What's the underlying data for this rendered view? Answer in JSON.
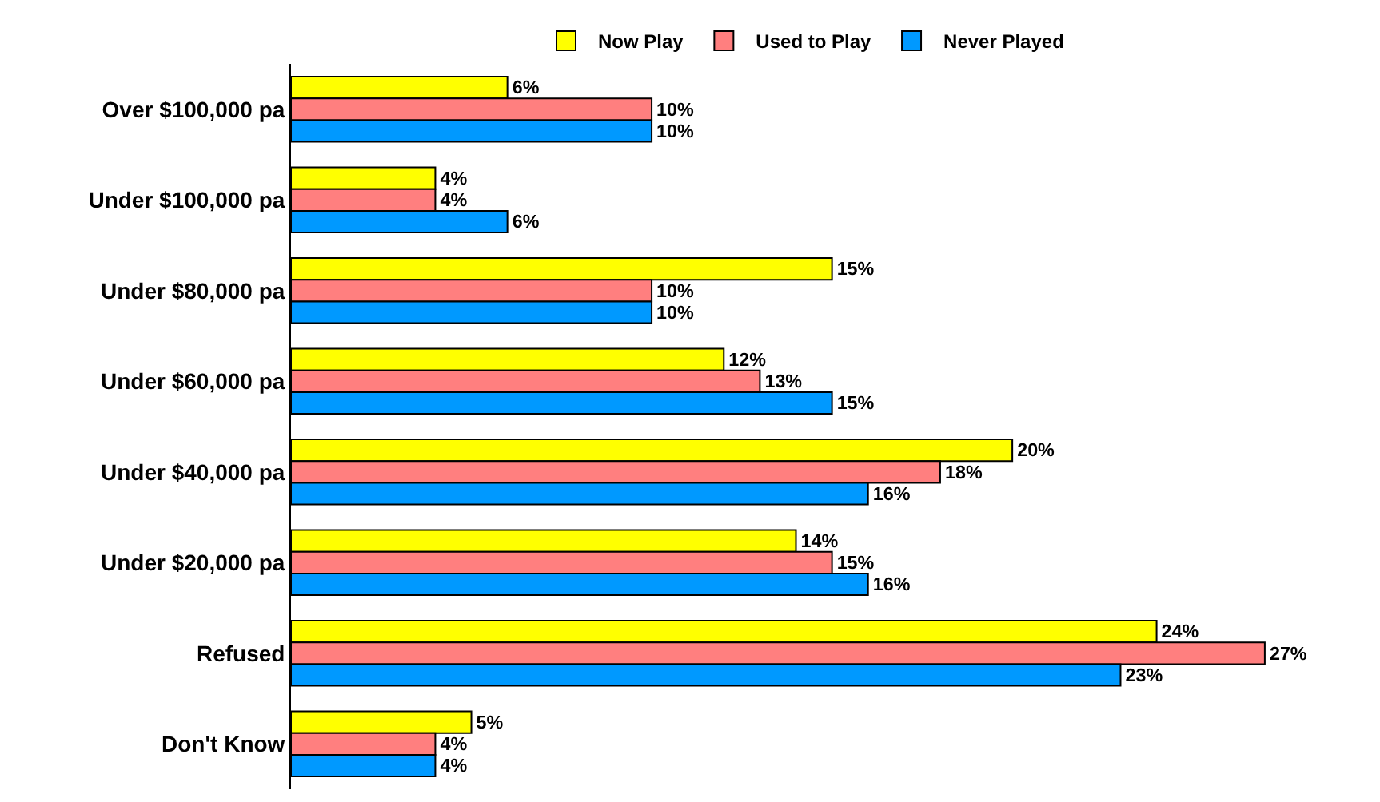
{
  "chart_data": {
    "type": "bar",
    "orientation": "horizontal",
    "legend": "top",
    "categories": [
      "Over $100,000 pa",
      "Under $100,000 pa",
      "Under $80,000 pa",
      "Under $60,000 pa",
      "Under $40,000 pa",
      "Under $20,000 pa",
      "Refused",
      "Don't Know"
    ],
    "series": [
      {
        "name": "Now Play",
        "color": "#ffff00",
        "values": [
          6,
          4,
          15,
          12,
          20,
          14,
          24,
          5
        ],
        "value_labels": [
          "6%",
          "4%",
          "15%",
          "12%",
          "20%",
          "14%",
          "24%",
          "5%"
        ]
      },
      {
        "name": "Used to Play",
        "color": "#ff7f7f",
        "values": [
          10,
          4,
          10,
          13,
          18,
          15,
          27,
          4
        ],
        "value_labels": [
          "10%",
          "4%",
          "10%",
          "13%",
          "18%",
          "15%",
          "27%",
          "4%"
        ]
      },
      {
        "name": "Never Played",
        "color": "#0099ff",
        "values": [
          10,
          6,
          10,
          15,
          16,
          16,
          23,
          4
        ],
        "value_labels": [
          "10%",
          "6%",
          "10%",
          "15%",
          "16%",
          "16%",
          "23%",
          "4%"
        ]
      }
    ]
  }
}
